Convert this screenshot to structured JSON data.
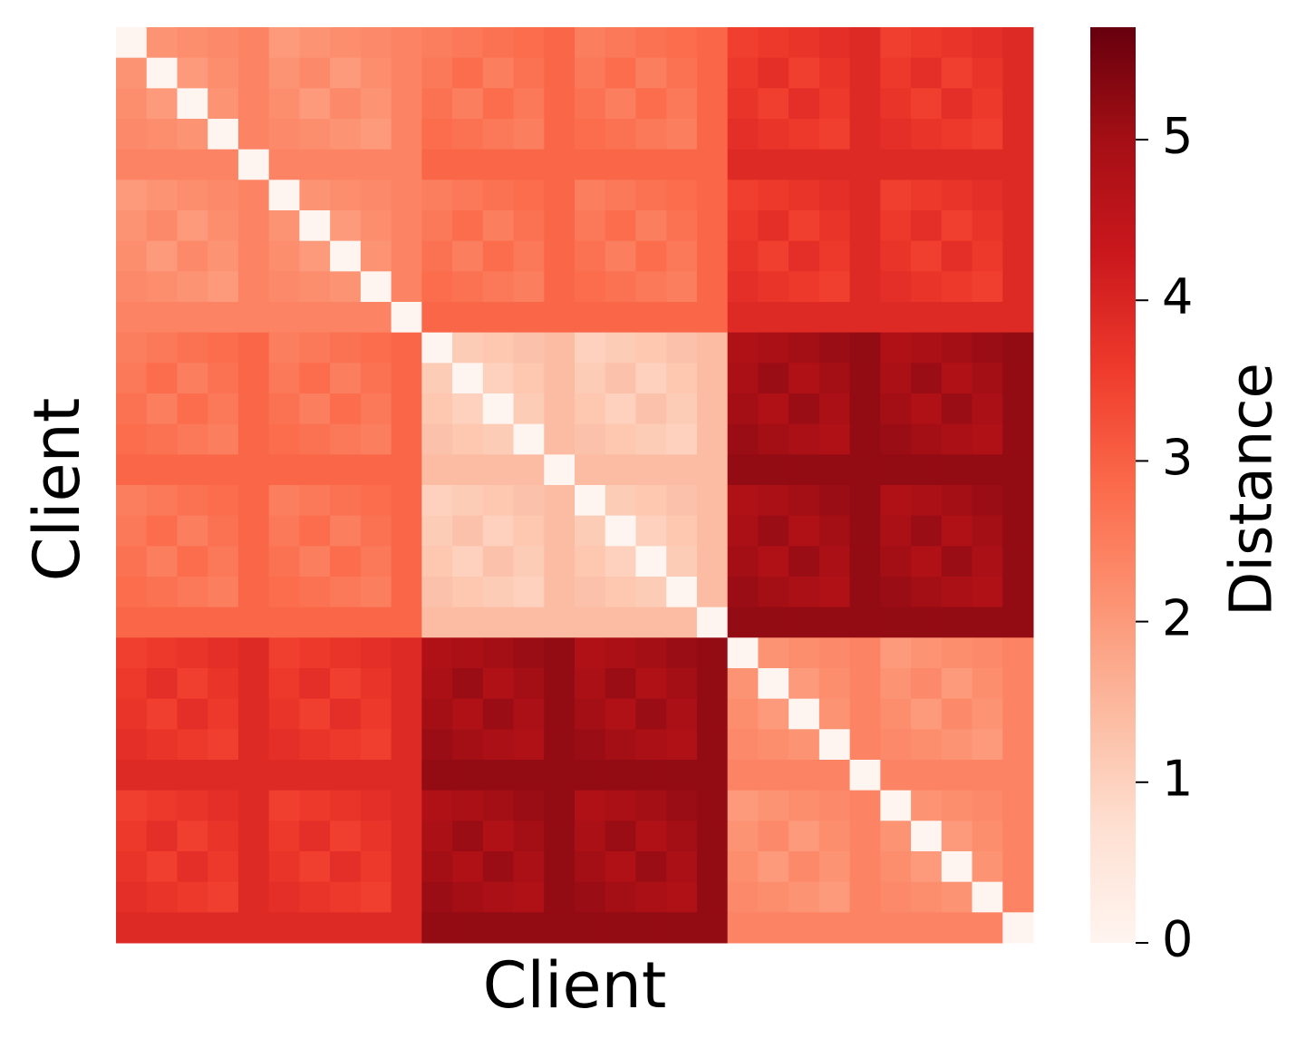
{
  "chart_data": {
    "type": "heatmap",
    "xlabel": "Client",
    "ylabel": "Client",
    "colorbar_label": "Distance",
    "colormap": [
      "#fff5f0",
      "#fee0d2",
      "#fcbba1",
      "#fc9272",
      "#fb6a4a",
      "#ef3b2c",
      "#cb181d",
      "#a50f15",
      "#67000d"
    ],
    "clim": [
      0,
      5.7
    ],
    "cticks": [
      0,
      1,
      2,
      3,
      4,
      5
    ],
    "z": [
      [
        0,
        2.1,
        2.2,
        2.3,
        2.4,
        2,
        2.1,
        2.2,
        2.3,
        2.4,
        2.5,
        2.6,
        2.7,
        2.8,
        2.9,
        2.5,
        2.6,
        2.7,
        2.8,
        2.9,
        3.5,
        3.6,
        3.7,
        3.8,
        3.9,
        3.5,
        3.6,
        3.7,
        3.8,
        3.9
      ],
      [
        2.1,
        0,
        2,
        2.2,
        2.4,
        2.1,
        2.3,
        2,
        2.2,
        2.4,
        2.6,
        2.8,
        2.5,
        2.7,
        2.9,
        2.6,
        2.8,
        2.5,
        2.7,
        2.9,
        3.6,
        3.8,
        3.5,
        3.7,
        3.9,
        3.6,
        3.8,
        3.5,
        3.7,
        3.9
      ],
      [
        2.2,
        2,
        0,
        2.1,
        2.4,
        2.2,
        2,
        2.3,
        2.1,
        2.4,
        2.7,
        2.5,
        2.8,
        2.6,
        2.9,
        2.7,
        2.5,
        2.8,
        2.6,
        2.9,
        3.7,
        3.5,
        3.8,
        3.6,
        3.9,
        3.7,
        3.5,
        3.8,
        3.6,
        3.9
      ],
      [
        2.3,
        2.2,
        2.1,
        0,
        2.4,
        2.3,
        2.2,
        2.1,
        2,
        2.4,
        2.8,
        2.7,
        2.6,
        2.5,
        2.9,
        2.8,
        2.7,
        2.6,
        2.5,
        2.9,
        3.8,
        3.7,
        3.6,
        3.5,
        3.9,
        3.8,
        3.7,
        3.6,
        3.5,
        3.9
      ],
      [
        2.4,
        2.4,
        2.4,
        2.4,
        0,
        2.4,
        2.4,
        2.4,
        2.4,
        2.4,
        2.9,
        2.9,
        2.9,
        2.9,
        2.9,
        2.9,
        2.9,
        2.9,
        2.9,
        2.9,
        3.9,
        3.9,
        3.9,
        3.9,
        3.9,
        3.9,
        3.9,
        3.9,
        3.9,
        3.9
      ],
      [
        2,
        2.1,
        2.2,
        2.3,
        2.4,
        0,
        2.1,
        2.2,
        2.3,
        2.4,
        2.5,
        2.6,
        2.7,
        2.8,
        2.9,
        2.5,
        2.6,
        2.7,
        2.8,
        2.9,
        3.5,
        3.6,
        3.7,
        3.8,
        3.9,
        3.5,
        3.6,
        3.7,
        3.8,
        3.9
      ],
      [
        2.1,
        2.3,
        2,
        2.2,
        2.4,
        2.1,
        0,
        2,
        2.2,
        2.4,
        2.6,
        2.8,
        2.5,
        2.7,
        2.9,
        2.6,
        2.8,
        2.5,
        2.7,
        2.9,
        3.6,
        3.8,
        3.5,
        3.7,
        3.9,
        3.6,
        3.8,
        3.5,
        3.7,
        3.9
      ],
      [
        2.2,
        2,
        2.3,
        2.1,
        2.4,
        2.2,
        2,
        0,
        2.1,
        2.4,
        2.7,
        2.5,
        2.8,
        2.6,
        2.9,
        2.7,
        2.5,
        2.8,
        2.6,
        2.9,
        3.7,
        3.5,
        3.8,
        3.6,
        3.9,
        3.7,
        3.5,
        3.8,
        3.6,
        3.9
      ],
      [
        2.3,
        2.2,
        2.1,
        2,
        2.4,
        2.3,
        2.2,
        2.1,
        0,
        2.4,
        2.8,
        2.7,
        2.6,
        2.5,
        2.9,
        2.8,
        2.7,
        2.6,
        2.5,
        2.9,
        3.8,
        3.7,
        3.6,
        3.5,
        3.9,
        3.8,
        3.7,
        3.6,
        3.5,
        3.9
      ],
      [
        2.4,
        2.4,
        2.4,
        2.4,
        2.4,
        2.4,
        2.4,
        2.4,
        2.4,
        0,
        2.9,
        2.9,
        2.9,
        2.9,
        2.9,
        2.9,
        2.9,
        2.9,
        2.9,
        2.9,
        3.9,
        3.9,
        3.9,
        3.9,
        3.9,
        3.9,
        3.9,
        3.9,
        3.9,
        3.9
      ],
      [
        2.5,
        2.6,
        2.7,
        2.8,
        2.9,
        2.5,
        2.6,
        2.7,
        2.8,
        2.9,
        0,
        1.1,
        1.2,
        1.3,
        1.4,
        1,
        1.1,
        1.2,
        1.3,
        1.4,
        4.8,
        4.9,
        5,
        5.1,
        5.2,
        4.8,
        4.9,
        5,
        5.1,
        5.2
      ],
      [
        2.6,
        2.8,
        2.5,
        2.7,
        2.9,
        2.6,
        2.8,
        2.5,
        2.7,
        2.9,
        1.1,
        0,
        1,
        1.2,
        1.4,
        1.1,
        1.3,
        1,
        1.2,
        1.4,
        4.9,
        5.1,
        4.8,
        5,
        5.2,
        4.9,
        5.1,
        4.8,
        5,
        5.2
      ],
      [
        2.7,
        2.5,
        2.8,
        2.6,
        2.9,
        2.7,
        2.5,
        2.8,
        2.6,
        2.9,
        1.2,
        1,
        0,
        1.1,
        1.4,
        1.2,
        1,
        1.3,
        1.1,
        1.4,
        5,
        4.8,
        5.1,
        4.9,
        5.2,
        5,
        4.8,
        5.1,
        4.9,
        5.2
      ],
      [
        2.8,
        2.7,
        2.6,
        2.5,
        2.9,
        2.8,
        2.7,
        2.6,
        2.5,
        2.9,
        1.3,
        1.2,
        1.1,
        0,
        1.4,
        1.3,
        1.2,
        1.1,
        1,
        1.4,
        5.1,
        5,
        4.9,
        4.8,
        5.2,
        5.1,
        5,
        4.9,
        4.8,
        5.2
      ],
      [
        2.9,
        2.9,
        2.9,
        2.9,
        2.9,
        2.9,
        2.9,
        2.9,
        2.9,
        2.9,
        1.4,
        1.4,
        1.4,
        1.4,
        0,
        1.4,
        1.4,
        1.4,
        1.4,
        1.4,
        5.2,
        5.2,
        5.2,
        5.2,
        5.2,
        5.2,
        5.2,
        5.2,
        5.2,
        5.2
      ],
      [
        2.5,
        2.6,
        2.7,
        2.8,
        2.9,
        2.5,
        2.6,
        2.7,
        2.8,
        2.9,
        1,
        1.1,
        1.2,
        1.3,
        1.4,
        0,
        1.1,
        1.2,
        1.3,
        1.4,
        4.8,
        4.9,
        5,
        5.1,
        5.2,
        4.8,
        4.9,
        5,
        5.1,
        5.2
      ],
      [
        2.6,
        2.8,
        2.5,
        2.7,
        2.9,
        2.6,
        2.8,
        2.5,
        2.7,
        2.9,
        1.1,
        1.3,
        1,
        1.2,
        1.4,
        1.1,
        0,
        1,
        1.2,
        1.4,
        4.9,
        5.1,
        4.8,
        5,
        5.2,
        4.9,
        5.1,
        4.8,
        5,
        5.2
      ],
      [
        2.7,
        2.5,
        2.8,
        2.6,
        2.9,
        2.7,
        2.5,
        2.8,
        2.6,
        2.9,
        1.2,
        1,
        1.3,
        1.1,
        1.4,
        1.2,
        1,
        0,
        1.1,
        1.4,
        5,
        4.8,
        5.1,
        4.9,
        5.2,
        5,
        4.8,
        5.1,
        4.9,
        5.2
      ],
      [
        2.8,
        2.7,
        2.6,
        2.5,
        2.9,
        2.8,
        2.7,
        2.6,
        2.5,
        2.9,
        1.3,
        1.2,
        1.1,
        1,
        1.4,
        1.3,
        1.2,
        1.1,
        0,
        1.4,
        5.1,
        5,
        4.9,
        4.8,
        5.2,
        5.1,
        5,
        4.9,
        4.8,
        5.2
      ],
      [
        2.9,
        2.9,
        2.9,
        2.9,
        2.9,
        2.9,
        2.9,
        2.9,
        2.9,
        2.9,
        1.4,
        1.4,
        1.4,
        1.4,
        1.4,
        1.4,
        1.4,
        1.4,
        1.4,
        0,
        5.2,
        5.2,
        5.2,
        5.2,
        5.2,
        5.2,
        5.2,
        5.2,
        5.2,
        5.2
      ],
      [
        3.5,
        3.6,
        3.7,
        3.8,
        3.9,
        3.5,
        3.6,
        3.7,
        3.8,
        3.9,
        4.8,
        4.9,
        5,
        5.1,
        5.2,
        4.8,
        4.9,
        5,
        5.1,
        5.2,
        0,
        2.1,
        2.2,
        2.3,
        2.4,
        2,
        2.1,
        2.2,
        2.3,
        2.4
      ],
      [
        3.6,
        3.8,
        3.5,
        3.7,
        3.9,
        3.6,
        3.8,
        3.5,
        3.7,
        3.9,
        4.9,
        5.1,
        4.8,
        5,
        5.2,
        4.9,
        5.1,
        4.8,
        5,
        5.2,
        2.1,
        0,
        2,
        2.2,
        2.4,
        2.1,
        2.3,
        2,
        2.2,
        2.4
      ],
      [
        3.7,
        3.5,
        3.8,
        3.6,
        3.9,
        3.7,
        3.5,
        3.8,
        3.6,
        3.9,
        5,
        4.8,
        5.1,
        4.9,
        5.2,
        5,
        4.8,
        5.1,
        4.9,
        5.2,
        2.2,
        2,
        0,
        2.1,
        2.4,
        2.2,
        2,
        2.3,
        2.1,
        2.4
      ],
      [
        3.8,
        3.7,
        3.6,
        3.5,
        3.9,
        3.8,
        3.7,
        3.6,
        3.5,
        3.9,
        5.1,
        5,
        4.9,
        4.8,
        5.2,
        5.1,
        5,
        4.9,
        4.8,
        5.2,
        2.3,
        2.2,
        2.1,
        0,
        2.4,
        2.3,
        2.2,
        2.1,
        2,
        2.4
      ],
      [
        3.9,
        3.9,
        3.9,
        3.9,
        3.9,
        3.9,
        3.9,
        3.9,
        3.9,
        3.9,
        5.2,
        5.2,
        5.2,
        5.2,
        5.2,
        5.2,
        5.2,
        5.2,
        5.2,
        5.2,
        2.4,
        2.4,
        2.4,
        2.4,
        0,
        2.4,
        2.4,
        2.4,
        2.4,
        2.4
      ],
      [
        3.5,
        3.6,
        3.7,
        3.8,
        3.9,
        3.5,
        3.6,
        3.7,
        3.8,
        3.9,
        4.8,
        4.9,
        5,
        5.1,
        5.2,
        4.8,
        4.9,
        5,
        5.1,
        5.2,
        2,
        2.1,
        2.2,
        2.3,
        2.4,
        0,
        2.1,
        2.2,
        2.3,
        2.4
      ],
      [
        3.6,
        3.8,
        3.5,
        3.7,
        3.9,
        3.6,
        3.8,
        3.5,
        3.7,
        3.9,
        4.9,
        5.1,
        4.8,
        5,
        5.2,
        4.9,
        5.1,
        4.8,
        5,
        5.2,
        2.1,
        2.3,
        2,
        2.2,
        2.4,
        2.1,
        0,
        2,
        2.2,
        2.4
      ],
      [
        3.7,
        3.5,
        3.8,
        3.6,
        3.9,
        3.7,
        3.5,
        3.8,
        3.6,
        3.9,
        5,
        4.8,
        5.1,
        4.9,
        5.2,
        5,
        4.8,
        5.1,
        4.9,
        5.2,
        2.2,
        2,
        2.3,
        2.1,
        2.4,
        2.2,
        2,
        0,
        2.1,
        2.4
      ],
      [
        3.8,
        3.7,
        3.6,
        3.5,
        3.9,
        3.8,
        3.7,
        3.6,
        3.5,
        3.9,
        5.1,
        5,
        4.9,
        4.8,
        5.2,
        5.1,
        5,
        4.9,
        4.8,
        5.2,
        2.3,
        2.2,
        2.1,
        2,
        2.4,
        2.3,
        2.2,
        2.1,
        0,
        2.4
      ],
      [
        3.9,
        3.9,
        3.9,
        3.9,
        3.9,
        3.9,
        3.9,
        3.9,
        3.9,
        3.9,
        5.2,
        5.2,
        5.2,
        5.2,
        5.2,
        5.2,
        5.2,
        5.2,
        5.2,
        5.2,
        2.4,
        2.4,
        2.4,
        2.4,
        2.4,
        2.4,
        2.4,
        2.4,
        2.4,
        0
      ]
    ]
  }
}
